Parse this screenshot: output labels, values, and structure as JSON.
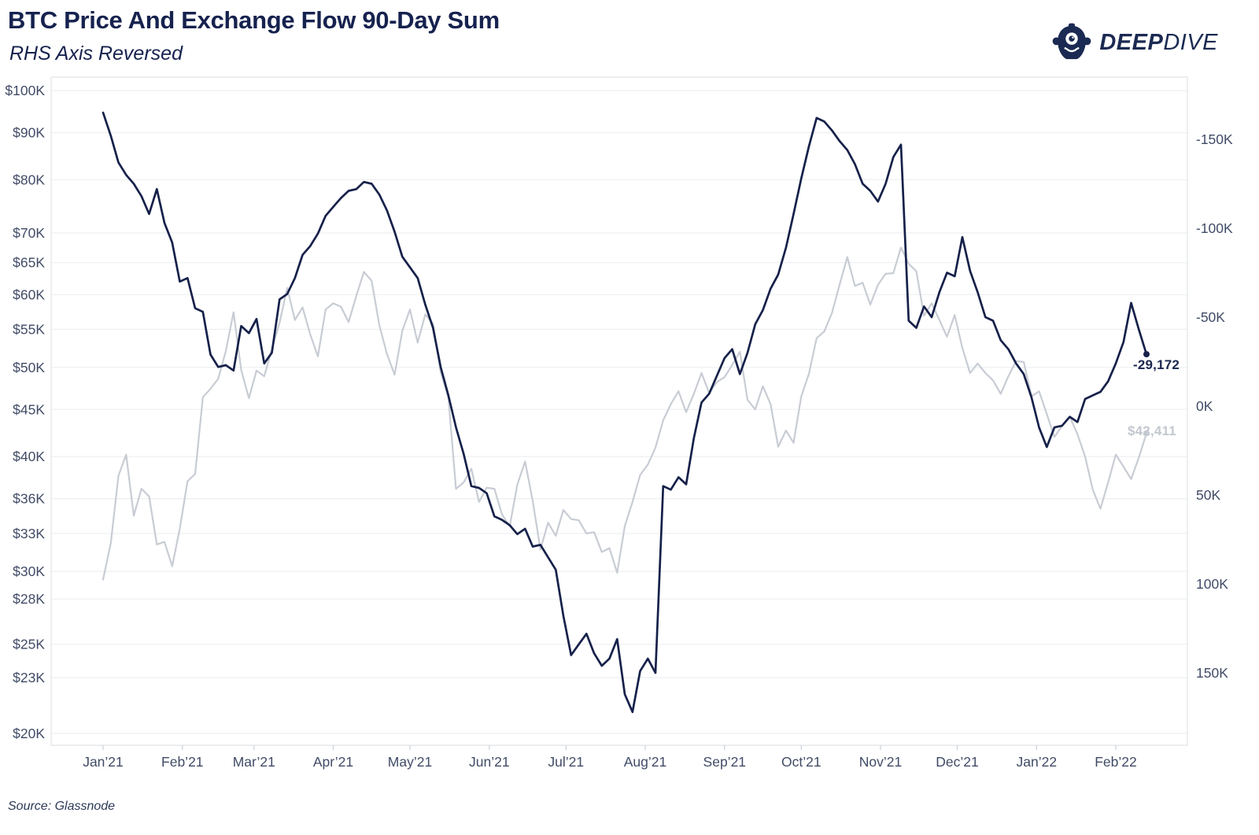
{
  "header": {
    "title": "BTC Price And Exchange Flow 90-Day Sum",
    "subtitle": "RHS Axis Reversed",
    "brand": {
      "bold": "DEEP",
      "light": "DIVE",
      "icon": "diver-helmet-icon",
      "color": "#1b2a52"
    }
  },
  "footer": {
    "source": "Source: Glassnode"
  },
  "colors": {
    "price_line": "#c8ccd4",
    "flow_line": "#16214a",
    "gridline": "#edeff2",
    "plot_border": "#e3e6ea",
    "axis_text": "#404b66",
    "title_text": "#16224e",
    "background": "#ffffff"
  },
  "chart_data": {
    "type": "line",
    "title": "BTC Price And Exchange Flow 90-Day Sum",
    "subtitle": "RHS Axis Reversed",
    "grid": true,
    "legend_position": "none",
    "x_start": "2021-01-01",
    "x_step_days": 3,
    "x_tick_labels": [
      "Jan’21",
      "Feb’21",
      "Mar’21",
      "Apr’21",
      "May’21",
      "Jun’21",
      "Jul’21",
      "Aug’21",
      "Sep’21",
      "Oct’21",
      "Nov’21",
      "Dec’21",
      "Jan’22",
      "Feb’22"
    ],
    "x_tick_day_offsets": [
      0,
      31,
      59,
      90,
      120,
      151,
      181,
      212,
      243,
      273,
      304,
      334,
      365,
      396
    ],
    "left_axis": {
      "scale": "log",
      "unit": "BTC price, USD thousands",
      "tick_labels": [
        "$100K",
        "$90K",
        "$80K",
        "$70K",
        "$65K",
        "$60K",
        "$55K",
        "$50K",
        "$45K",
        "$40K",
        "$36K",
        "$33K",
        "$30K",
        "$28K",
        "$25K",
        "$23K",
        "$20K"
      ],
      "tick_values": [
        100,
        90,
        80,
        70,
        65,
        60,
        55,
        50,
        45,
        40,
        36,
        33,
        30,
        28,
        25,
        23,
        20
      ]
    },
    "right_axis": {
      "scale": "linear",
      "reversed": true,
      "unit": "Exchange flow 90-day sum, thousands of BTC",
      "tick_labels": [
        "-150K",
        "-100K",
        "-50K",
        "0K",
        "50K",
        "100K",
        "150K"
      ],
      "tick_values": [
        -150,
        -100,
        -50,
        0,
        50,
        100,
        150
      ]
    },
    "series": [
      {
        "name": "BTC Price",
        "axis": "left",
        "color": "#c8ccd4",
        "end_label": "$42,411",
        "end_value": 42.411,
        "values": [
          29.4,
          32.2,
          38.1,
          40.2,
          34.5,
          36.9,
          36.2,
          32.1,
          32.3,
          30.4,
          33.4,
          37.6,
          38.3,
          46.4,
          47.4,
          48.6,
          52.1,
          57.4,
          49.7,
          46.3,
          49.6,
          48.9,
          52.3,
          55.9,
          61.0,
          56.3,
          58.1,
          54.3,
          51.4,
          57.8,
          58.7,
          58.2,
          56.0,
          59.8,
          63.5,
          62.1,
          55.6,
          51.7,
          49.1,
          54.8,
          57.8,
          53.2,
          57.1,
          55.8,
          49.4,
          46.4,
          36.9,
          37.5,
          38.8,
          35.7,
          37.0,
          36.9,
          34.6,
          33.6,
          37.3,
          39.5,
          35.8,
          31.7,
          33.9,
          32.8,
          35.0,
          34.2,
          34.1,
          33.0,
          33.1,
          31.5,
          31.8,
          29.9,
          33.6,
          35.7,
          38.2,
          39.2,
          40.9,
          43.8,
          45.6,
          47.1,
          44.7,
          46.8,
          49.3,
          46.9,
          48.2,
          48.8,
          50.3,
          52.0,
          46.1,
          45.0,
          47.7,
          45.6,
          41.0,
          42.7,
          41.4,
          46.5,
          49.2,
          53.8,
          54.7,
          57.3,
          61.5,
          65.9,
          61.3,
          61.8,
          58.5,
          61.5,
          63.2,
          63.3,
          67.5,
          64.8,
          63.6,
          56.9,
          58.7,
          56.3,
          54.0,
          57.0,
          52.5,
          49.3,
          50.5,
          49.3,
          48.4,
          46.8,
          48.9,
          50.8,
          50.7,
          46.5,
          47.1,
          44.5,
          42.0,
          43.2,
          44.2,
          42.3,
          40.0,
          36.8,
          35.1,
          37.5,
          40.2,
          39.0,
          37.8,
          39.9,
          42.411
        ]
      },
      {
        "name": "Exchange Flow 90-Day Sum",
        "axis": "right",
        "color": "#16214a",
        "end_label": "-29,172",
        "end_value": -29.172,
        "values": [
          -165,
          -152,
          -137,
          -130,
          -125,
          -118,
          -108,
          -122,
          -103,
          -92,
          -70,
          -72,
          -55,
          -53,
          -29,
          -22,
          -23,
          -20,
          -45,
          -41,
          -49,
          -24,
          -30,
          -60,
          -63,
          -72,
          -85,
          -90,
          -97,
          -107,
          -112,
          -117,
          -121,
          -122,
          -126,
          -125,
          -119,
          -110,
          -98,
          -84,
          -78,
          -72,
          -57,
          -44,
          -22,
          -6,
          12,
          27,
          45,
          46,
          49,
          62,
          64,
          67,
          72,
          69,
          79,
          78,
          85,
          92,
          118,
          140,
          134,
          128,
          139,
          146,
          142,
          131,
          162,
          172,
          149,
          142,
          150,
          45,
          47,
          40,
          44,
          18,
          -2,
          -7,
          -17,
          -27,
          -32,
          -18,
          -30,
          -46,
          -54,
          -66,
          -74,
          -89,
          -108,
          -128,
          -146,
          -162,
          -160,
          -155,
          -149,
          -144,
          -136,
          -125,
          -121,
          -115,
          -125,
          -140,
          -147,
          -48,
          -44,
          -56,
          -50,
          -64,
          -75,
          -73,
          -95,
          -76,
          -64,
          -50,
          -48,
          -37,
          -32,
          -24,
          -18,
          -5,
          12,
          23,
          12,
          11,
          6,
          9,
          -4,
          -6,
          -8,
          -14,
          -24,
          -36,
          -58,
          -43,
          -29.172
        ]
      }
    ]
  }
}
